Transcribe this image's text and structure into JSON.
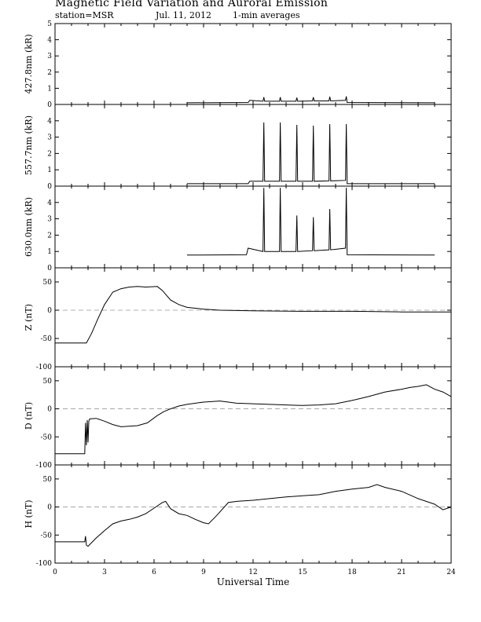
{
  "header": {
    "title": "Magnetic Field Variation and Auroral Emission",
    "station": "station=MSR",
    "date": "Jul.  11, 2012",
    "averaging": "1-min averages"
  },
  "chart_data": [
    {
      "type": "line",
      "ylabel": "427.8nm (kR)",
      "ylim": [
        0,
        5
      ],
      "yticks": [
        0,
        1,
        2,
        3,
        4,
        5
      ],
      "zero_line": false,
      "series": [
        {
          "x": [
            8,
            11.7,
            11.8,
            12.6,
            12.65,
            12.7,
            13.6,
            13.65,
            13.7,
            14.6,
            14.65,
            14.7,
            15.6,
            15.65,
            15.7,
            16.6,
            16.65,
            16.7,
            17.6,
            17.65,
            17.7,
            23
          ],
          "y": [
            0.1,
            0.12,
            0.25,
            0.2,
            0.45,
            0.2,
            0.2,
            0.45,
            0.2,
            0.2,
            0.42,
            0.2,
            0.22,
            0.45,
            0.22,
            0.22,
            0.48,
            0.22,
            0.25,
            0.5,
            0.12,
            0.1
          ]
        }
      ]
    },
    {
      "type": "line",
      "ylabel": "557.7nm (kR)",
      "ylim": [
        0,
        5
      ],
      "yticks": [
        0,
        1,
        2,
        3,
        4
      ],
      "zero_line": false,
      "series": [
        {
          "x": [
            8,
            11.7,
            11.8,
            12.6,
            12.65,
            12.7,
            13.6,
            13.65,
            13.7,
            14.6,
            14.65,
            14.7,
            15.6,
            15.65,
            15.7,
            16.6,
            16.65,
            16.7,
            17.6,
            17.65,
            17.7,
            23
          ],
          "y": [
            0.15,
            0.15,
            0.3,
            0.3,
            3.9,
            0.3,
            0.3,
            3.9,
            0.3,
            0.3,
            3.75,
            0.3,
            0.3,
            3.7,
            0.3,
            0.32,
            3.8,
            0.32,
            0.35,
            3.8,
            0.15,
            0.15
          ]
        }
      ]
    },
    {
      "type": "line",
      "ylabel": "630.0nm (kR)",
      "ylim": [
        0,
        5
      ],
      "yticks": [
        0,
        1,
        2,
        3,
        4
      ],
      "zero_line": false,
      "series": [
        {
          "x": [
            8,
            11.6,
            11.7,
            12.6,
            12.65,
            12.7,
            13.6,
            13.65,
            13.7,
            14.6,
            14.65,
            14.7,
            15.6,
            15.65,
            15.7,
            16.6,
            16.65,
            16.7,
            17.6,
            17.65,
            17.7,
            23
          ],
          "y": [
            0.78,
            0.8,
            1.2,
            1.0,
            4.9,
            1.0,
            1.0,
            4.9,
            1.0,
            1.0,
            3.2,
            1.0,
            1.05,
            3.1,
            1.05,
            1.1,
            3.6,
            1.1,
            1.2,
            4.9,
            0.8,
            0.78
          ]
        }
      ]
    },
    {
      "type": "line",
      "ylabel": "Z (nT)",
      "ylim": [
        -100,
        75
      ],
      "yticks": [
        -100,
        -50,
        0,
        50
      ],
      "zero_line": true,
      "series": [
        {
          "x": [
            0,
            1.9,
            2.2,
            2.6,
            3.0,
            3.5,
            4.0,
            4.5,
            5.0,
            5.5,
            6.2,
            6.5,
            7.0,
            7.5,
            8.0,
            9.0,
            10.0,
            12.0,
            15.0,
            18.0,
            21.0,
            24.0
          ],
          "y": [
            -58,
            -58,
            -42,
            -15,
            10,
            32,
            38,
            41,
            42,
            41,
            42,
            35,
            18,
            10,
            5,
            2,
            0,
            -1,
            -2,
            -2,
            -3,
            -3
          ]
        }
      ]
    },
    {
      "type": "line",
      "ylabel": "D (nT)",
      "ylim": [
        -100,
        75
      ],
      "yticks": [
        -100,
        -50,
        0,
        50
      ],
      "zero_line": true,
      "series": [
        {
          "x": [
            0,
            1.8,
            1.85,
            1.9,
            1.95,
            2.0,
            2.05,
            2.1,
            2.5,
            3.0,
            3.5,
            4.0,
            5.0,
            5.6,
            6.2,
            6.6,
            7.0,
            7.5,
            8.0,
            9.0,
            10.0,
            11.0,
            12.0,
            13.0,
            14.0,
            15.0,
            16.0,
            17.0,
            18.0,
            19.0,
            20.0,
            21.0,
            21.5,
            22.0,
            22.5,
            23.0,
            23.5,
            24.0
          ],
          "y": [
            -80,
            -80,
            -25,
            -65,
            -20,
            -60,
            -22,
            -18,
            -17,
            -22,
            -28,
            -32,
            -30,
            -25,
            -12,
            -5,
            0,
            5,
            8,
            12,
            14,
            10,
            9,
            8,
            7,
            6,
            7,
            9,
            15,
            22,
            30,
            35,
            38,
            40,
            43,
            35,
            30,
            22
          ]
        }
      ]
    },
    {
      "type": "line",
      "ylabel": "H (nT)",
      "ylim": [
        -100,
        75
      ],
      "yticks": [
        -100,
        -50,
        0,
        50
      ],
      "zero_line": true,
      "series": [
        {
          "x": [
            0,
            1.8,
            1.85,
            1.9,
            2.0,
            2.5,
            3.0,
            3.5,
            4.0,
            4.5,
            5.0,
            5.5,
            6.0,
            6.5,
            6.7,
            7.0,
            7.5,
            8.0,
            8.5,
            9.0,
            9.3,
            9.8,
            10.5,
            11.0,
            12.0,
            13.0,
            14.0,
            15.0,
            16.0,
            17.0,
            18.0,
            19.0,
            19.5,
            20.0,
            21.0,
            22.0,
            23.0,
            23.5,
            24.0
          ],
          "y": [
            -62,
            -62,
            -52,
            -68,
            -70,
            -55,
            -42,
            -30,
            -25,
            -22,
            -18,
            -12,
            -2,
            8,
            10,
            -3,
            -12,
            -15,
            -22,
            -28,
            -30,
            -15,
            8,
            10,
            12,
            15,
            18,
            20,
            22,
            28,
            32,
            35,
            40,
            35,
            28,
            15,
            5,
            -5,
            0
          ]
        }
      ]
    }
  ],
  "x_axis": {
    "label": "Universal Time",
    "ticks": [
      0,
      3,
      6,
      9,
      12,
      15,
      18,
      21,
      24
    ],
    "xlim": [
      0,
      24
    ]
  }
}
